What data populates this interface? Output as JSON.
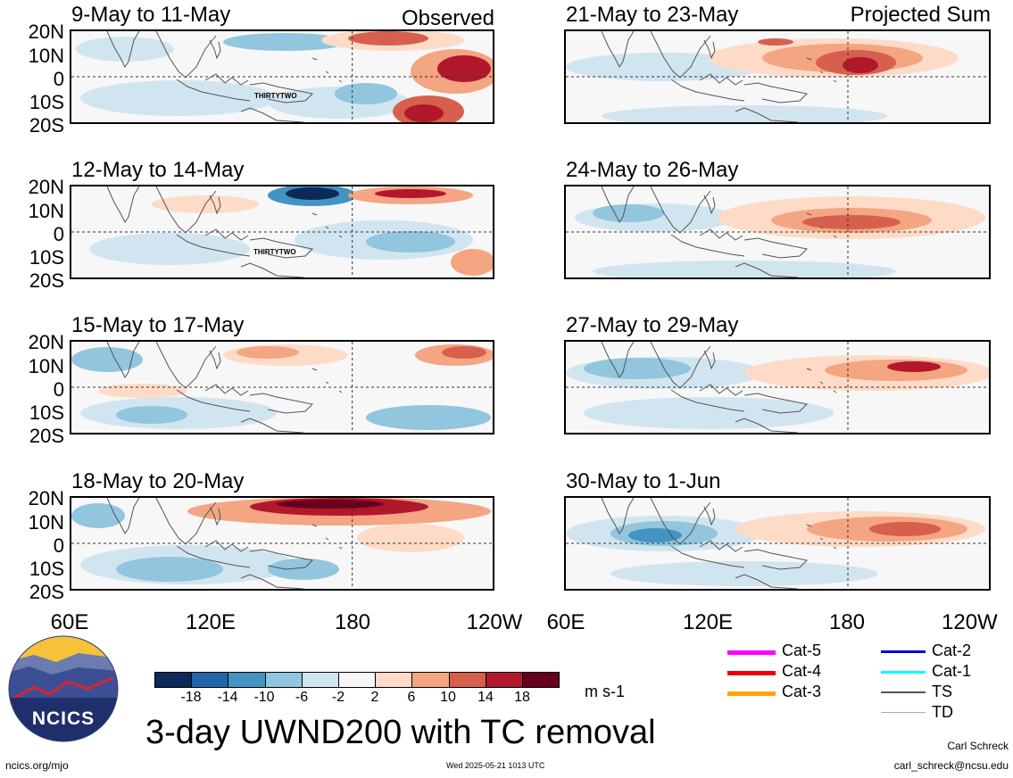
{
  "observed_label": "Observed",
  "projected_label": "Projected Sum",
  "latitude_labels": [
    "20N",
    "10N",
    "0",
    "10S",
    "20S"
  ],
  "longitude_labels": [
    "60E",
    "120E",
    "180",
    "120W"
  ],
  "panels": [
    {
      "title": "9-May to 11-May",
      "tc_label": "THIRTYTWO"
    },
    {
      "title": "12-May to 14-May",
      "tc_label": "THIRTYTWO"
    },
    {
      "title": "15-May to 17-May",
      "tc_label": ""
    },
    {
      "title": "18-May to 20-May",
      "tc_label": ""
    },
    {
      "title": "21-May to 23-May",
      "tc_label": ""
    },
    {
      "title": "24-May to 26-May",
      "tc_label": ""
    },
    {
      "title": "27-May to 29-May",
      "tc_label": ""
    },
    {
      "title": "30-May to 1-Jun",
      "tc_label": ""
    }
  ],
  "colorbar": {
    "colors": [
      "#0b2a5a",
      "#2166ac",
      "#4393c3",
      "#92c5de",
      "#d1e5f0",
      "#f7f7f7",
      "#fddbc7",
      "#f4a582",
      "#d6604d",
      "#b2182b",
      "#67001f"
    ],
    "labels": [
      "-18",
      "-14",
      "-10",
      "-6",
      "-2",
      "2",
      "6",
      "10",
      "14",
      "18"
    ],
    "units": "m s-1"
  },
  "legend": [
    {
      "label": "Cat-5",
      "color": "#ff00ff"
    },
    {
      "label": "Cat-2",
      "color": "#0000cc"
    },
    {
      "label": "Cat-4",
      "color": "#ee0000"
    },
    {
      "label": "Cat-1",
      "color": "#00ffff"
    },
    {
      "label": "Cat-3",
      "color": "#ffa500"
    },
    {
      "label": "TS",
      "color": "#555555"
    },
    {
      "label": "TD",
      "color": "#aaaaaa"
    }
  ],
  "logo_text": "NCICS",
  "main_title": "3-day UWND200 with TC removal",
  "footer": {
    "website": "ncics.org/mjo",
    "timestamp": "Wed 2025-05-21 1013 UTC",
    "author": "Carl Schreck",
    "email": "carl_schreck@ncsu.edu"
  }
}
